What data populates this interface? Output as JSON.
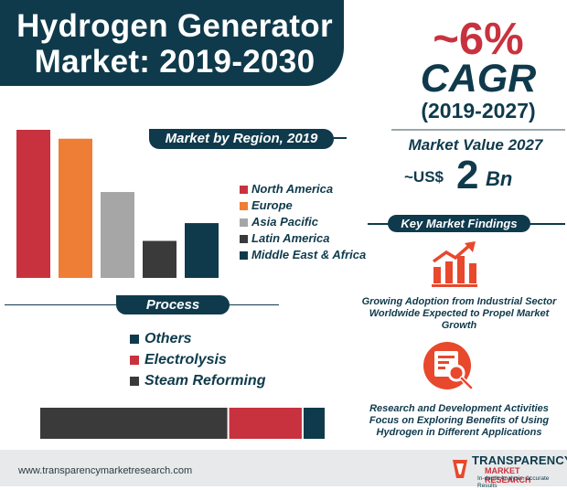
{
  "header": {
    "title_line1": "Hydrogen Generator",
    "title_line2": "Market: 2019-2030"
  },
  "highlights": {
    "cagr_value": "~6%",
    "cagr_label": "CAGR",
    "cagr_period": "(2019-2027)",
    "market_value_label": "Market Value 2027",
    "market_value_prefix": "~US$",
    "market_value_number": "2",
    "market_value_unit": "Bn"
  },
  "findings": {
    "header": "Key Market Findings",
    "items": [
      {
        "text": "Growing Adoption from Industrial Sector Worldwide Expected to Propel Market Growth",
        "icon": "growth-chart-icon"
      },
      {
        "text": "Research and Development Activities Focus on Exploring Benefits of Using Hydrogen in Different Applications",
        "icon": "research-document-icon"
      }
    ]
  },
  "colors": {
    "navy": "#0f3a4c",
    "red": "#c8323e",
    "orange": "#ee7d35",
    "gray": "#a6a6a6",
    "dark": "#3a3a3a"
  },
  "chart_data": [
    {
      "type": "bar",
      "title": "Market by Region, 2019",
      "categories": [
        "North America",
        "Europe",
        "Asia Pacific",
        "Latin America",
        "Middle East & Africa"
      ],
      "values": [
        100,
        94,
        58,
        25,
        37
      ],
      "colors": [
        "#c8323e",
        "#ee7d35",
        "#a6a6a6",
        "#3a3a3a",
        "#0f3a4c"
      ],
      "axis_visible": false,
      "ylim": [
        0,
        100
      ],
      "legend_position": "right"
    },
    {
      "type": "bar",
      "orientation": "horizontal-stacked",
      "title": "Process",
      "categories": [
        "Steam Reforming",
        "Electrolysis",
        "Others"
      ],
      "values": [
        66,
        26,
        8
      ],
      "colors": [
        "#3a3a3a",
        "#c8323e",
        "#0f3a4c"
      ],
      "legend_order": [
        "Others",
        "Electrolysis",
        "Steam Reforming"
      ],
      "axis_visible": false,
      "legend_position": "above"
    }
  ],
  "footer": {
    "url": "www.transparencymarketresearch.com",
    "logo_line1": "TRANSPARENCY",
    "logo_line2": "MARKET RESEARCH",
    "logo_tagline": "In-depth Analysis. Accurate Results"
  }
}
